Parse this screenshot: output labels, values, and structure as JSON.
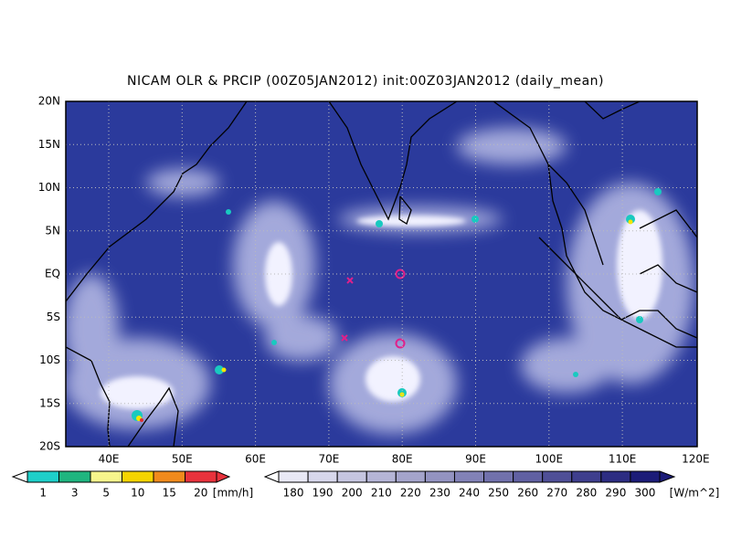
{
  "title": "NICAM OLR & PRCIP (00Z05JAN2012) init:00Z03JAN2012 (daily_mean)",
  "lat_labels": [
    "20N",
    "15N",
    "10N",
    "5N",
    "EQ",
    "5S",
    "10S",
    "15S",
    "20S"
  ],
  "lon_labels": [
    "40E",
    "50E",
    "60E",
    "70E",
    "80E",
    "90E",
    "100E",
    "110E",
    "120E"
  ],
  "precip_colorbar": {
    "ticks": [
      "1",
      "3",
      "5",
      "10",
      "15",
      "20"
    ],
    "unit": "[mm/h]"
  },
  "olr_colorbar": {
    "ticks": [
      "180",
      "190",
      "200",
      "210",
      "220",
      "230",
      "240",
      "250",
      "260",
      "270",
      "280",
      "290",
      "300"
    ],
    "unit": "[W/m^2]"
  }
}
